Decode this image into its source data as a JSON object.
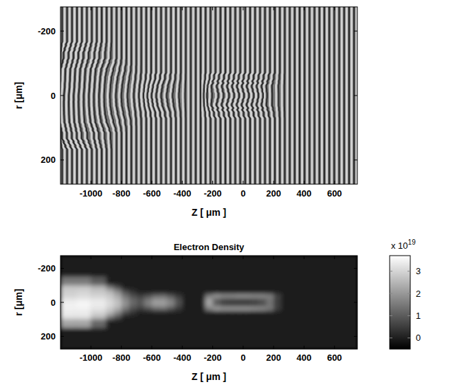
{
  "chart_data": [
    {
      "type": "image",
      "xlabel": "Z [ μm ]",
      "ylabel": "r [μm]",
      "xlim": [
        -1200,
        750
      ],
      "ylim": [
        -275,
        275
      ],
      "xticks": [
        -1000,
        -800,
        -600,
        -400,
        -200,
        0,
        200,
        400,
        600
      ],
      "yticks": [
        -200,
        0,
        200
      ]
    },
    {
      "type": "heatmap",
      "title": "Electron Density",
      "xlabel": "Z [ μm ]",
      "ylabel": "r [μm]",
      "xlim": [
        -1200,
        750
      ],
      "ylim": [
        -275,
        275
      ],
      "xticks": [
        -1000,
        -800,
        -600,
        -400,
        -200,
        0,
        200,
        400,
        600
      ],
      "yticks": [
        -200,
        0,
        200
      ],
      "x_edges": [
        -1200,
        -1100,
        -1000,
        -900,
        -850,
        -800,
        -750,
        -700,
        -650,
        -600,
        -550,
        -500,
        -450,
        -400,
        -250,
        -200,
        -150,
        -100,
        -50,
        0,
        50,
        100,
        150,
        200,
        250,
        750
      ],
      "y_edges": [
        -275,
        -150,
        -100,
        -75,
        -50,
        -25,
        0,
        25,
        50,
        75,
        100,
        150,
        275
      ],
      "cells": [
        [
          0,
          0,
          0,
          0,
          0,
          0,
          0,
          0,
          0,
          0,
          0,
          0,
          0,
          0,
          0,
          0,
          0,
          0,
          0,
          0,
          0,
          0,
          0,
          0,
          0
        ],
        [
          1.5,
          1.5,
          1.0,
          0,
          0,
          0,
          0,
          0,
          0,
          0,
          0,
          0,
          0,
          0,
          0,
          0,
          0,
          0,
          0,
          0,
          0,
          0,
          0,
          0,
          0
        ],
        [
          2.8,
          2.8,
          2.5,
          1.5,
          0.8,
          0,
          0,
          0,
          0,
          0,
          0,
          0,
          0,
          0,
          0,
          0,
          0,
          0,
          0,
          0,
          0,
          0,
          0,
          0,
          0
        ],
        [
          2.9,
          3.0,
          2.8,
          2.5,
          1.8,
          0.8,
          0.3,
          0,
          0,
          0,
          0,
          0,
          0,
          0,
          0,
          0,
          0,
          0,
          0,
          0,
          0,
          0,
          0,
          0,
          0
        ],
        [
          3.0,
          3.1,
          3.0,
          2.8,
          2.3,
          1.4,
          0.8,
          0.5,
          0.8,
          1.2,
          1.3,
          0.9,
          0.4,
          0,
          1.5,
          2.0,
          1.8,
          1.8,
          1.9,
          1.9,
          1.8,
          1.8,
          1.6,
          0.6,
          0
        ],
        [
          3.3,
          3.4,
          3.3,
          3.0,
          2.6,
          1.8,
          1.2,
          0.9,
          1.5,
          2.0,
          2.0,
          1.6,
          0.8,
          0,
          2.2,
          1.0,
          0.6,
          0.5,
          0.5,
          0.5,
          0.6,
          0.8,
          1.4,
          0.5,
          0
        ],
        [
          3.5,
          3.6,
          3.4,
          3.1,
          2.7,
          1.9,
          1.2,
          0.9,
          1.6,
          2.1,
          2.1,
          1.7,
          0.8,
          0,
          2.2,
          1.1,
          0.6,
          0.5,
          0.5,
          0.5,
          0.6,
          0.8,
          1.4,
          0.5,
          0
        ],
        [
          3.5,
          3.5,
          3.3,
          2.9,
          2.4,
          1.5,
          0.8,
          0.5,
          0.8,
          1.2,
          1.3,
          0.9,
          0.4,
          0,
          1.6,
          2.1,
          2.0,
          2.0,
          2.0,
          2.0,
          1.9,
          1.8,
          1.5,
          0.5,
          0
        ],
        [
          3.4,
          3.4,
          3.0,
          2.5,
          1.7,
          0.7,
          0.3,
          0,
          0,
          0,
          0,
          0,
          0,
          0,
          0,
          0,
          0,
          0,
          0,
          0,
          0,
          0,
          0,
          0,
          0
        ],
        [
          3.2,
          3.2,
          2.6,
          1.5,
          0.8,
          0,
          0,
          0,
          0,
          0,
          0,
          0,
          0,
          0,
          0,
          0,
          0,
          0,
          0,
          0,
          0,
          0,
          0,
          0,
          0
        ],
        [
          2.2,
          2.2,
          1.2,
          0,
          0,
          0,
          0,
          0,
          0,
          0,
          0,
          0,
          0,
          0,
          0,
          0,
          0,
          0,
          0,
          0,
          0,
          0,
          0,
          0,
          0
        ],
        [
          0,
          0,
          0,
          0,
          0,
          0,
          0,
          0,
          0,
          0,
          0,
          0,
          0,
          0,
          0,
          0,
          0,
          0,
          0,
          0,
          0,
          0,
          0,
          0,
          0
        ]
      ],
      "colorbar": {
        "range": [
          -0.5,
          3.7
        ],
        "ticks": [
          0,
          1,
          2,
          3
        ],
        "label": "x 10",
        "label_exponent": "19"
      }
    }
  ]
}
